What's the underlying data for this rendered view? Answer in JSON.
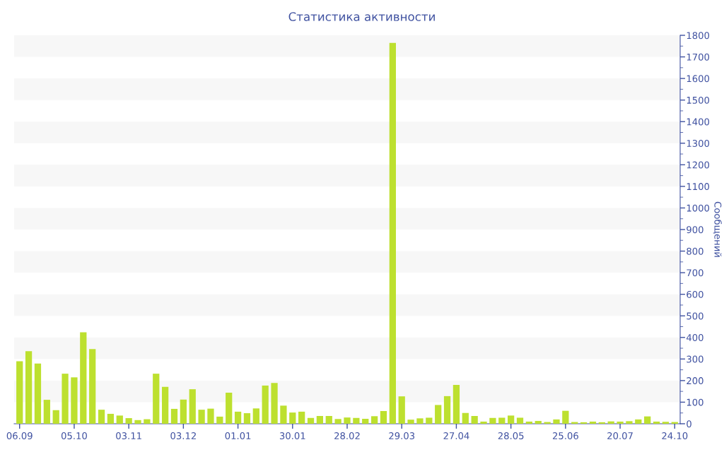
{
  "chart_data": {
    "type": "bar",
    "title": "Статистика активности",
    "ylabel": "Сообщений",
    "categories": [
      "06.09",
      null,
      null,
      null,
      null,
      null,
      "05.10",
      null,
      null,
      null,
      null,
      null,
      "03.11",
      null,
      null,
      null,
      null,
      null,
      "03.12",
      null,
      null,
      null,
      null,
      null,
      "01.01",
      null,
      null,
      null,
      null,
      null,
      "30.01",
      null,
      null,
      null,
      null,
      null,
      "28.02",
      null,
      null,
      null,
      null,
      null,
      "29.03",
      null,
      null,
      null,
      null,
      null,
      "27.04",
      null,
      null,
      null,
      null,
      null,
      "28.05",
      null,
      null,
      null,
      null,
      null,
      "25.06",
      null,
      null,
      null,
      null,
      null,
      "20.07",
      null,
      null,
      null,
      null,
      null,
      "24.10"
    ],
    "values": [
      290,
      336,
      279,
      111,
      63,
      232,
      215,
      424,
      346,
      65,
      46,
      38,
      26,
      17,
      21,
      232,
      171,
      69,
      112,
      160,
      65,
      70,
      33,
      144,
      56,
      49,
      71,
      177,
      189,
      84,
      52,
      56,
      27,
      36,
      36,
      22,
      29,
      27,
      23,
      35,
      59,
      1765,
      127,
      19,
      25,
      28,
      87,
      128,
      180,
      50,
      36,
      10,
      27,
      28,
      38,
      28,
      10,
      13,
      8,
      20,
      60,
      8,
      7,
      10,
      7,
      11,
      10,
      12,
      20,
      34,
      10,
      9,
      8
    ],
    "color": "#bde02f",
    "ylim": [
      0,
      1800
    ],
    "yticks": [
      0,
      100,
      200,
      300,
      400,
      500,
      600,
      700,
      800,
      900,
      1000,
      1100,
      1200,
      1300,
      1400,
      1500,
      1600,
      1700,
      1800
    ],
    "bands": [
      {
        "axis": "y",
        "from": 100,
        "to": 200,
        "color": "#f7f7f7"
      },
      {
        "axis": "y",
        "from": 300,
        "to": 400,
        "color": "#f7f7f7"
      },
      {
        "axis": "y",
        "from": 500,
        "to": 600,
        "color": "#f7f7f7"
      },
      {
        "axis": "y",
        "from": 700,
        "to": 800,
        "color": "#f7f7f7"
      },
      {
        "axis": "y",
        "from": 900,
        "to": 1000,
        "color": "#f7f7f7"
      },
      {
        "axis": "y",
        "from": 1100,
        "to": 1200,
        "color": "#f7f7f7"
      },
      {
        "axis": "y",
        "from": 1300,
        "to": 1400,
        "color": "#f7f7f7"
      },
      {
        "axis": "y",
        "from": 1500,
        "to": 1600,
        "color": "#f7f7f7"
      },
      {
        "axis": "y",
        "from": 1700,
        "to": 1800,
        "color": "#f7f7f7"
      }
    ]
  }
}
